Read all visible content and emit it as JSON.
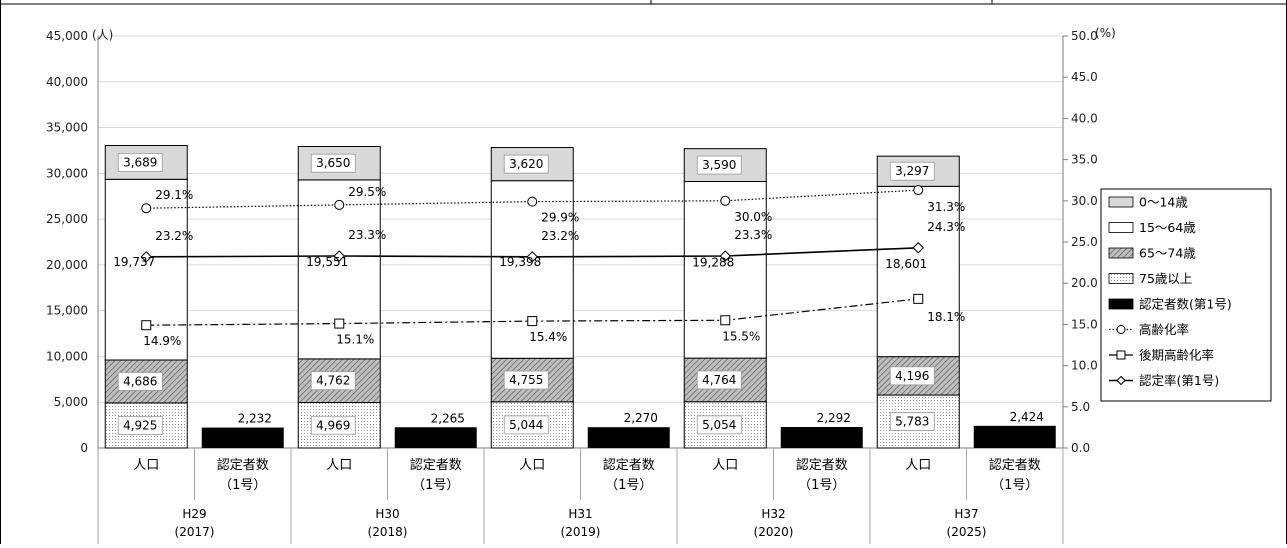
{
  "chart_data": {
    "type": "bar",
    "left_axis": {
      "unit": "(人)",
      "min": 0,
      "max": 45000,
      "step": 5000,
      "ticks": [
        "0",
        "5,000",
        "10,000",
        "15,000",
        "20,000",
        "25,000",
        "30,000",
        "35,000",
        "40,000",
        "45,000"
      ]
    },
    "right_axis": {
      "unit": "(%)",
      "min": 0,
      "max": 50,
      "step": 5,
      "ticks": [
        "0.0",
        "5.0",
        "10.0",
        "15.0",
        "20.0",
        "25.0",
        "30.0",
        "35.0",
        "40.0",
        "45.0",
        "50.0"
      ]
    },
    "groups": [
      {
        "label": "H29",
        "year": "(2017)"
      },
      {
        "label": "H30",
        "year": "(2018)"
      },
      {
        "label": "H31",
        "year": "(2019)"
      },
      {
        "label": "H32",
        "year": "(2020)"
      },
      {
        "label": "H37",
        "year": "(2025)"
      }
    ],
    "sub_labels": {
      "population": "人口",
      "certified_line1": "認定者数",
      "certified_line2": "（1号）"
    },
    "stack_series": [
      {
        "name": "75歳以上",
        "values": [
          4925,
          4969,
          5044,
          5054,
          5783
        ],
        "labels": [
          "4,925",
          "4,969",
          "5,044",
          "5,054",
          "5,783"
        ]
      },
      {
        "name": "65～74歳",
        "values": [
          4686,
          4762,
          4755,
          4764,
          4196
        ],
        "labels": [
          "4,686",
          "4,762",
          "4,755",
          "4,764",
          "4,196"
        ]
      },
      {
        "name": "15～64歳",
        "values": [
          19737,
          19551,
          19398,
          19288,
          18601
        ],
        "labels": [
          "19,737",
          "19,551",
          "19,398",
          "19,288",
          "18,601"
        ]
      },
      {
        "name": "0～14歳",
        "values": [
          3689,
          3650,
          3620,
          3590,
          3297
        ],
        "labels": [
          "3,689",
          "3,650",
          "3,620",
          "3,590",
          "3,297"
        ]
      }
    ],
    "certified_series": {
      "name": "認定者数(第1号)",
      "values": [
        2232,
        2265,
        2270,
        2292,
        2424
      ],
      "labels": [
        "2,232",
        "2,265",
        "2,270",
        "2,292",
        "2,424"
      ]
    },
    "line_series": [
      {
        "name": "高齢化率",
        "values": [
          29.1,
          29.5,
          29.9,
          30.0,
          31.3
        ],
        "labels": [
          "29.1%",
          "29.5%",
          "29.9%",
          "30.0%",
          "31.3%"
        ]
      },
      {
        "name": "後期高齢化率",
        "values": [
          14.9,
          15.1,
          15.4,
          15.5,
          18.1
        ],
        "labels": [
          "14.9%",
          "15.1%",
          "15.4%",
          "15.5%",
          "18.1%"
        ]
      },
      {
        "name": "認定率(第1号)",
        "values": [
          23.2,
          23.3,
          23.2,
          23.3,
          24.3
        ],
        "labels": [
          "23.2%",
          "23.3%",
          "23.2%",
          "23.3%",
          "24.3%"
        ]
      }
    ],
    "legend": {
      "position": "right",
      "entries": [
        "0～14歳",
        "15～64歳",
        "65～74歳",
        "75歳以上",
        "認定者数(第1号)",
        "高齢化率",
        "後期高齢化率",
        "認定率(第1号)"
      ]
    },
    "colors": {
      "age_0_14": "#d9d9d9",
      "age_15_64": "#ffffff",
      "age_65_74": "#a6a6a6",
      "age_75_plus": "#f2f2f2",
      "certified": "#000000",
      "line": "#000000"
    }
  }
}
